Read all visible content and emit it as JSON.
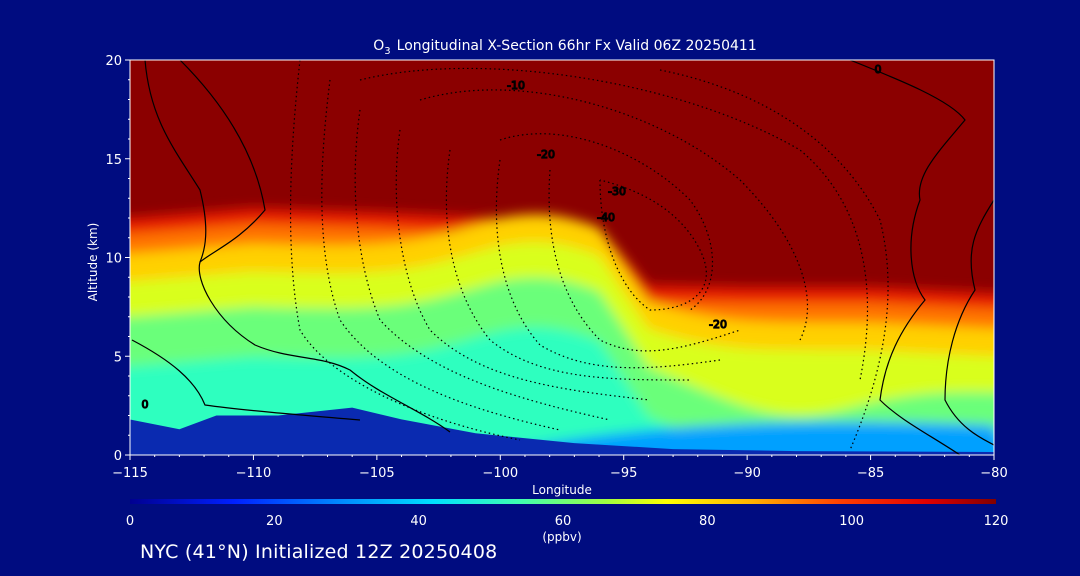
{
  "chart_data": {
    "type": "heatmap",
    "title": {
      "species_main": "O",
      "species_sub": "3",
      "rest": "Longitudinal X-Section 66hr  Fx Valid 06Z 20250411"
    },
    "xlabel": "Longitude",
    "ylabel": "Altitude (km)",
    "xlim": [
      -115,
      -80
    ],
    "ylim": [
      0,
      20
    ],
    "x_ticks": [
      -115,
      -110,
      -105,
      -100,
      -95,
      -90,
      -85,
      -80
    ],
    "x_tick_labels": [
      "−115",
      "−110",
      "−105",
      "−100",
      "−95",
      "−90",
      "−85",
      "−80"
    ],
    "y_ticks": [
      0,
      5,
      10,
      15,
      20
    ],
    "y_tick_labels": [
      "0",
      "5",
      "10",
      "15",
      "20"
    ],
    "colorbar": {
      "label": "(ppbv)",
      "range": [
        0,
        120
      ],
      "ticks": [
        0,
        20,
        40,
        60,
        80,
        100,
        120
      ],
      "tick_labels": [
        "0",
        "20",
        "40",
        "60",
        "80",
        "100",
        "120"
      ],
      "colors": [
        "#0000b0",
        "#0040ff",
        "#00b0ff",
        "#20ffd0",
        "#80ff60",
        "#ffff00",
        "#ffa000",
        "#ff2000",
        "#900000"
      ]
    },
    "field": {
      "tropopause_km": [
        [
          -115,
          12.0
        ],
        [
          -110,
          12.5
        ],
        [
          -105,
          12.3
        ],
        [
          -100,
          12.0
        ],
        [
          -96,
          11.5
        ],
        [
          -94,
          8.6
        ],
        [
          -90,
          8.5
        ],
        [
          -85,
          8.5
        ],
        [
          -80,
          8.2
        ]
      ],
      "layers": [
        {
          "value": 115,
          "top_km": 20
        },
        {
          "value": 90,
          "top_km": 12.2
        },
        {
          "value": 75,
          "top_km": 11
        },
        {
          "value": 65,
          "top_km": 9
        },
        {
          "value": 55,
          "top_km": 7
        },
        {
          "value": 45,
          "top_km": 4
        }
      ]
    },
    "terrain_km": [
      [
        -115,
        1.8
      ],
      [
        -113,
        1.3
      ],
      [
        -111.5,
        2.0
      ],
      [
        -109,
        2.0
      ],
      [
        -106,
        2.4
      ],
      [
        -104,
        1.8
      ],
      [
        -101,
        1.1
      ],
      [
        -97,
        0.6
      ],
      [
        -93,
        0.3
      ],
      [
        -88,
        0.2
      ],
      [
        -80,
        0.15
      ]
    ],
    "contours": [
      {
        "label": "0",
        "style": "solid"
      },
      {
        "label": "-10",
        "style": "dotted"
      },
      {
        "label": "-20",
        "style": "dotted"
      },
      {
        "label": "-30",
        "style": "dotted"
      },
      {
        "label": "-40",
        "style": "dotted"
      }
    ],
    "grid": false
  },
  "footer": {
    "text": "NYC (41°N) Initialized 12Z 20250408"
  },
  "colors": {
    "background": "#000c80",
    "axes_text": "#ffffff"
  }
}
